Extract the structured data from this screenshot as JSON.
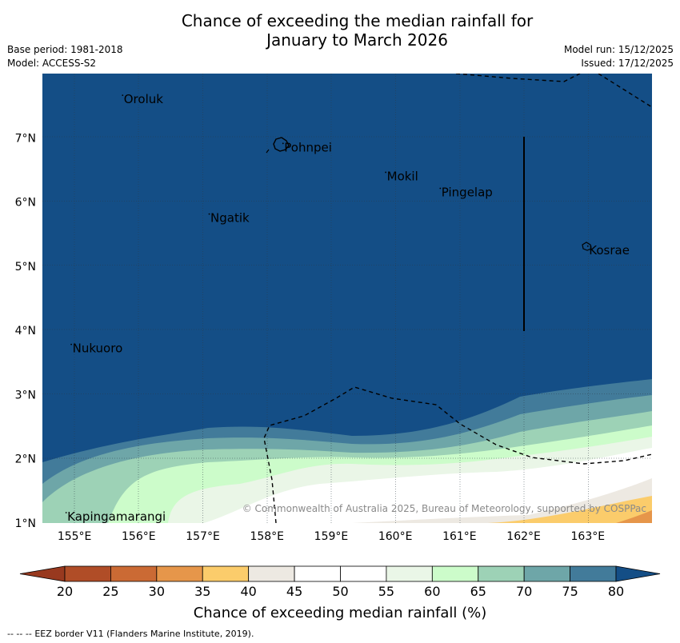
{
  "header": {
    "title_line1": "Chance of exceeding the median rainfall for",
    "title_line2": "January to March 2026",
    "base_period": "Base period: 1981-2018",
    "model": "Model: ACCESS-S2",
    "model_run": "Model run: 15/12/2025",
    "issued": "Issued: 17/12/2025"
  },
  "map": {
    "lon_labels": [
      "155°E",
      "156°E",
      "157°E",
      "158°E",
      "159°E",
      "160°E",
      "161°E",
      "162°E",
      "163°E"
    ],
    "lat_labels": [
      "1°N",
      "2°N",
      "3°N",
      "4°N",
      "5°N",
      "6°N",
      "7°N"
    ],
    "places": [
      {
        "name": "Oroluk",
        "lon": 155.75,
        "lat": 7.6
      },
      {
        "name": "Pohnpei",
        "lon": 158.25,
        "lat": 6.85
      },
      {
        "name": "Mokil",
        "lon": 159.85,
        "lat": 6.4
      },
      {
        "name": "Pingelap",
        "lon": 160.7,
        "lat": 6.15
      },
      {
        "name": "Ngatik",
        "lon": 157.1,
        "lat": 5.75
      },
      {
        "name": "Kosrae",
        "lon": 163.0,
        "lat": 5.25
      },
      {
        "name": "Nukuoro",
        "lon": 154.95,
        "lat": 3.72
      },
      {
        "name": "Kapingamarangi",
        "lon": 154.87,
        "lat": 1.1
      }
    ],
    "copyright": "© Commonwealth of Australia 2025, Bureau of Meteorology, supported by COSPPac",
    "field_colors": {
      "above_80": "#144e86",
      "75_80": "#427b9a",
      "70_75": "#6ea6a8",
      "65_70": "#9dd2b6",
      "60_65": "#ccfcca",
      "55_60": "#eaf6e7",
      "50_55": "#ffffff",
      "40_45": "#ede9e2",
      "35_40": "#fbcc6b",
      "30_35": "#e6964a"
    }
  },
  "colorbar": {
    "ticks": [
      "20",
      "25",
      "30",
      "35",
      "40",
      "45",
      "50",
      "55",
      "60",
      "65",
      "70",
      "75",
      "80"
    ],
    "colors": [
      "#b04d27",
      "#cb6a34",
      "#e6964a",
      "#fbcc6b",
      "#ede9e2",
      "#ffffff",
      "#ffffff",
      "#eaf6e7",
      "#ccfcca",
      "#9dd2b6",
      "#6ea6a8",
      "#427b9a"
    ],
    "low_extend_color": "#98391f",
    "high_extend_color": "#144e86",
    "label": "Chance of exceeding median rainfall (%)"
  },
  "footer": {
    "eez_legend_dashes": "--  --  --",
    "eez_legend_text": "EEZ border V11 (Flanders Marine Institute, 2019)."
  }
}
